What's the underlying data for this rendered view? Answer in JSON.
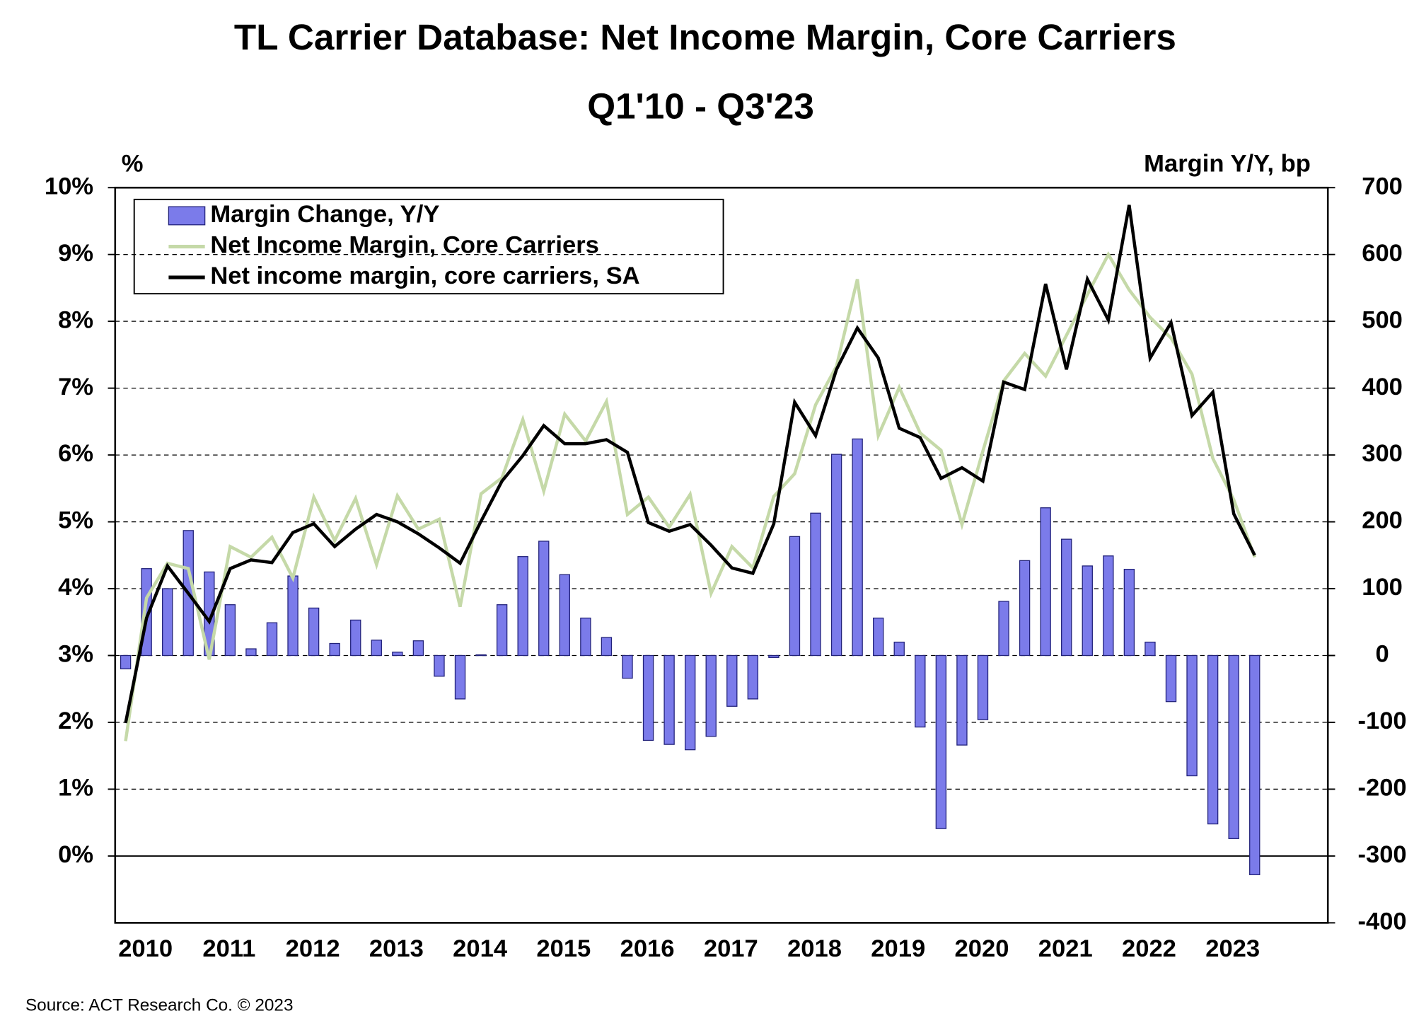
{
  "chart_data": {
    "type": "bar_line",
    "title": "TL Carrier Database: Net Income Margin, Core Carriers",
    "subtitle": "Q1'10 - Q3'23",
    "y_label": "%",
    "y2_label": "Margin Y/Y, bp",
    "source": "Source:  ACT Research Co. © 2023",
    "categories": [
      "2010",
      null,
      null,
      null,
      "2011",
      null,
      null,
      null,
      "2012",
      null,
      null,
      null,
      "2013",
      null,
      null,
      null,
      "2014",
      null,
      null,
      null,
      "2015",
      null,
      null,
      null,
      "2016",
      null,
      null,
      null,
      "2017",
      null,
      null,
      null,
      "2018",
      null,
      null,
      null,
      "2019",
      null,
      null,
      null,
      "2020",
      null,
      null,
      null,
      "2021",
      null,
      null,
      null,
      "2022",
      null,
      null,
      null,
      "2023",
      null,
      null
    ],
    "ylim": [
      -1,
      10
    ],
    "yticks": [
      {
        "value": 0,
        "label": "0%"
      },
      {
        "value": 1,
        "label": "1%"
      },
      {
        "value": 2,
        "label": "2%"
      },
      {
        "value": 3,
        "label": "3%"
      },
      {
        "value": 4,
        "label": "4%"
      },
      {
        "value": 5,
        "label": "5%"
      },
      {
        "value": 6,
        "label": "6%"
      },
      {
        "value": 7,
        "label": "7%"
      },
      {
        "value": 8,
        "label": "8%"
      },
      {
        "value": 9,
        "label": "9%"
      },
      {
        "value": 10,
        "label": "10%"
      }
    ],
    "y2lim": [
      -400,
      700
    ],
    "y2ticks": [
      -400,
      -300,
      -200,
      -100,
      0,
      100,
      200,
      300,
      400,
      500,
      600,
      700
    ],
    "grid": true,
    "legend": "upper left",
    "series": [
      {
        "name": "Margin Change, Y/Y",
        "type": "bar",
        "axis": "y2",
        "color": "#7b7bea",
        "values": [
          -20,
          130,
          100,
          187,
          125,
          76,
          10,
          49,
          119,
          71,
          18,
          53,
          23,
          5,
          22,
          -31,
          -65,
          1,
          76,
          148,
          171,
          121,
          56,
          27,
          -34,
          -127,
          -133,
          -141,
          -121,
          -76,
          -65,
          -3,
          178,
          213,
          301,
          324,
          56,
          20,
          -107,
          -259,
          -134,
          -96,
          81,
          142,
          221,
          174,
          134,
          149,
          129,
          20,
          -69,
          -180,
          -252,
          -274,
          -328
        ]
      },
      {
        "name": "Net Income Margin, Core Carriers",
        "type": "line",
        "axis": "y",
        "color": "#c5d9a8",
        "values": [
          1.72,
          3.86,
          4.38,
          4.3,
          2.94,
          4.63,
          4.47,
          4.77,
          4.16,
          5.37,
          4.72,
          5.35,
          4.36,
          5.39,
          4.89,
          5.04,
          3.73,
          5.42,
          5.66,
          6.53,
          5.46,
          6.61,
          6.21,
          6.8,
          5.11,
          5.37,
          4.92,
          5.41,
          3.93,
          4.63,
          4.31,
          5.38,
          5.72,
          6.75,
          7.33,
          8.63,
          6.29,
          7.01,
          6.33,
          6.07,
          4.96,
          6.06,
          7.11,
          7.52,
          7.18,
          7.79,
          8.4,
          9.0,
          8.47,
          8.06,
          7.75,
          7.21,
          5.95,
          5.33,
          4.47
        ]
      },
      {
        "name": "Net income margin, core carriers, SA",
        "type": "line",
        "axis": "y",
        "color": "#000000",
        "values": [
          1.99,
          3.56,
          4.34,
          3.93,
          3.51,
          4.3,
          4.43,
          4.39,
          4.84,
          4.97,
          4.63,
          4.89,
          5.11,
          5.0,
          4.82,
          4.61,
          4.38,
          5.01,
          5.61,
          5.99,
          6.44,
          6.17,
          6.17,
          6.23,
          6.04,
          4.99,
          4.86,
          4.96,
          4.65,
          4.31,
          4.23,
          4.97,
          6.79,
          6.29,
          7.28,
          7.9,
          7.45,
          6.4,
          6.26,
          5.65,
          5.81,
          5.61,
          7.09,
          6.98,
          8.56,
          7.28,
          8.63,
          8.02,
          9.74,
          7.45,
          7.98,
          6.59,
          6.94,
          5.12,
          4.5
        ]
      }
    ]
  }
}
